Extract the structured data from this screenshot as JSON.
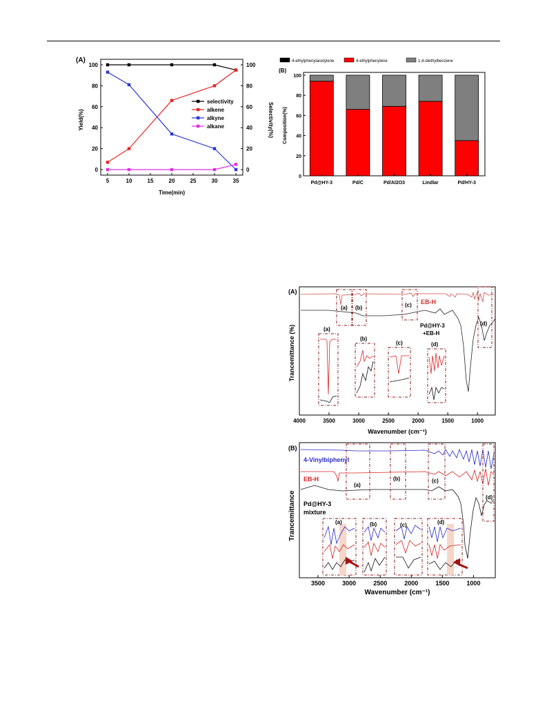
{
  "figure_top": {
    "panel_a": {
      "label": "(A)",
      "ylabel_left": "Yield(%)",
      "ylabel_right": "Selectivity(%)",
      "xlabel": "Time(min)",
      "xticks": [
        "5",
        "10",
        "15",
        "20",
        "25",
        "30",
        "35"
      ],
      "yticks": [
        "0",
        "20",
        "40",
        "60",
        "80",
        "100"
      ],
      "legend": [
        "selectivity",
        "alkene",
        "alkyne",
        "alkane"
      ]
    },
    "panel_b": {
      "label": "(B)",
      "ylabel": "Composition(%)",
      "yticks": [
        "0",
        "20",
        "40",
        "60",
        "80",
        "100"
      ],
      "legend": [
        "4-ethylphenylacetylene",
        "4-ethylphenylene",
        "1,4-diethylbenzene"
      ]
    }
  },
  "figure_ir_a": {
    "label": "(A)",
    "ylabel": "Trancemittance (%)",
    "xlabel": "Wavenumber (cm⁻¹)",
    "xticks": [
      "4000",
      "3500",
      "3000",
      "2500",
      "2000",
      "1500",
      "1000"
    ],
    "spectrum_eb": "EB-H",
    "spectrum_pd_1": "Pd@HY-3",
    "spectrum_pd_2": "+EB-H",
    "region_labels": [
      "(a)",
      "(b)",
      "(c)",
      "(d)"
    ]
  },
  "figure_ir_b": {
    "label": "(B)",
    "ylabel": "Trancemittance",
    "xlabel": "Wavenumber (cm⁻¹)",
    "xticks": [
      "3500",
      "3000",
      "2500",
      "2000",
      "1500",
      "1000"
    ],
    "spectrum_vb": "4-Vinylbiphenyl",
    "spectrum_eb": "EB-H",
    "spectrum_pd_1": "Pd@HY-3",
    "spectrum_pd_2": "mixture",
    "region_labels": [
      "(a)",
      "(b)",
      "(c)",
      "(d)"
    ]
  },
  "chart_data": [
    {
      "type": "line",
      "xlabel": "Time(min)",
      "ylabel": "Yield(%)",
      "y2label": "Selectivity(%)",
      "xlim": [
        5,
        35
      ],
      "ylim": [
        0,
        100
      ],
      "x": [
        5,
        10,
        20,
        30,
        35
      ],
      "series": [
        {
          "name": "selectivity",
          "color": "#000000",
          "values": [
            100,
            100,
            100,
            100,
            95
          ]
        },
        {
          "name": "alkene",
          "color": "#e8231e",
          "values": [
            7,
            20,
            66,
            80,
            95
          ]
        },
        {
          "name": "alkyne",
          "color": "#2a35d9",
          "values": [
            93,
            81,
            34,
            20,
            0
          ]
        },
        {
          "name": "alkane",
          "color": "#e32ee3",
          "values": [
            0,
            0,
            0,
            0,
            5
          ]
        }
      ],
      "legend": "right"
    },
    {
      "type": "bar",
      "stacked": true,
      "ylabel": "Composition(%)",
      "ylim": [
        0,
        100
      ],
      "categories": [
        "Pd@HY-3",
        "Pd/C",
        "Pd/Al2O3",
        "Lindlar",
        "Pd/HY-3"
      ],
      "series": [
        {
          "name": "4-ethylphenylacetylene",
          "color": "#000000",
          "values": [
            0,
            0,
            0,
            0,
            0
          ]
        },
        {
          "name": "4-ethylphenylene",
          "color": "#ff0000",
          "values": [
            94,
            66,
            69,
            74,
            35
          ]
        },
        {
          "name": "1,4-diethylbenzene",
          "color": "#7f7f7f",
          "values": [
            6,
            34,
            31,
            26,
            65
          ]
        }
      ],
      "legend": "top"
    }
  ]
}
